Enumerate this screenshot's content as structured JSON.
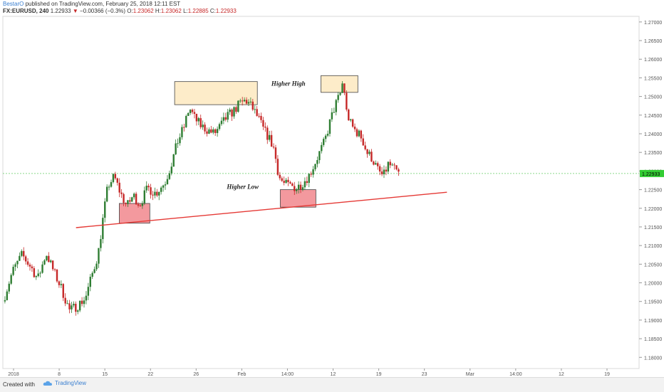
{
  "header": {
    "author": "BestarO",
    "published": "published on TradingView.com, February 25, 2018 12:11 EST",
    "symbol": "FX:EURUSD, 240",
    "last": "1.22933",
    "change": "−0.00366 (−0.3%)",
    "o_label": "O:",
    "o_value": "1.23062",
    "h_label": "H:",
    "h_value": "1.23062",
    "l_label": "L:",
    "l_value": "1.22885",
    "c_label": "C:",
    "c_value": "1.22933"
  },
  "footer": {
    "created_with": "Created with",
    "brand": "TradingView",
    "logo_icon": "tradingview-cloud-icon"
  },
  "chart_data": {
    "type": "candlestick",
    "symbol": "FX:EURUSD",
    "interval": "240",
    "ylim": [
      1.177,
      1.2715
    ],
    "y_ticks": [
      "1.27000",
      "1.26500",
      "1.26000",
      "1.25500",
      "1.25000",
      "1.24500",
      "1.24000",
      "1.23500",
      "1.23000",
      "1.22500",
      "1.22000",
      "1.21500",
      "1.21000",
      "1.20500",
      "1.20000",
      "1.19500",
      "1.19000",
      "1.18500",
      "1.18000"
    ],
    "x_ticks": [
      "2018",
      "8",
      "15",
      "22",
      "26",
      "Feb",
      "14:00",
      "12",
      "19",
      "23",
      "Mar",
      "14:00",
      "12",
      "19"
    ],
    "current_price": "1.22933",
    "up_color": "#2e7d32",
    "down_color": "#c62828",
    "annotations": [
      {
        "text": "Higher High"
      },
      {
        "text": "Higher Low"
      }
    ],
    "trendline": {
      "from": [
        0.115,
        1.2148
      ],
      "to": [
        0.698,
        1.2243
      ]
    },
    "zones": [
      {
        "kind": "supply",
        "x0": 0.27,
        "x1": 0.4,
        "y0": 1.2478,
        "y1": 1.254
      },
      {
        "kind": "supply",
        "x0": 0.5,
        "x1": 0.558,
        "y0": 1.2511,
        "y1": 1.2556
      },
      {
        "kind": "demand",
        "x0": 0.183,
        "x1": 0.231,
        "y0": 1.216,
        "y1": 1.2213
      },
      {
        "kind": "demand",
        "x0": 0.436,
        "x1": 0.492,
        "y0": 1.2203,
        "y1": 1.225
      }
    ],
    "path": [
      [
        0.0,
        1.195
      ],
      [
        0.015,
        1.203
      ],
      [
        0.03,
        1.2075
      ],
      [
        0.045,
        1.204
      ],
      [
        0.055,
        1.201
      ],
      [
        0.068,
        1.208
      ],
      [
        0.08,
        1.203
      ],
      [
        0.092,
        1.1985
      ],
      [
        0.105,
        1.1925
      ],
      [
        0.118,
        1.194
      ],
      [
        0.13,
        1.196
      ],
      [
        0.14,
        1.202
      ],
      [
        0.15,
        1.208
      ],
      [
        0.158,
        1.218
      ],
      [
        0.165,
        1.226
      ],
      [
        0.175,
        1.2285
      ],
      [
        0.185,
        1.224
      ],
      [
        0.195,
        1.2205
      ],
      [
        0.205,
        1.2235
      ],
      [
        0.215,
        1.221
      ],
      [
        0.228,
        1.2255
      ],
      [
        0.24,
        1.224
      ],
      [
        0.255,
        1.227
      ],
      [
        0.265,
        1.232
      ],
      [
        0.275,
        1.238
      ],
      [
        0.285,
        1.242
      ],
      [
        0.293,
        1.247
      ],
      [
        0.302,
        1.244
      ],
      [
        0.312,
        1.242
      ],
      [
        0.322,
        1.241
      ],
      [
        0.332,
        1.24
      ],
      [
        0.342,
        1.242
      ],
      [
        0.352,
        1.2445
      ],
      [
        0.362,
        1.246
      ],
      [
        0.372,
        1.248
      ],
      [
        0.382,
        1.249
      ],
      [
        0.392,
        1.247
      ],
      [
        0.402,
        1.244
      ],
      [
        0.41,
        1.241
      ],
      [
        0.418,
        1.239
      ],
      [
        0.426,
        1.236
      ],
      [
        0.434,
        1.2285
      ],
      [
        0.442,
        1.2265
      ],
      [
        0.452,
        1.226
      ],
      [
        0.462,
        1.2255
      ],
      [
        0.472,
        1.227
      ],
      [
        0.482,
        1.229
      ],
      [
        0.49,
        1.232
      ],
      [
        0.498,
        1.235
      ],
      [
        0.506,
        1.238
      ],
      [
        0.514,
        1.243
      ],
      [
        0.522,
        1.2475
      ],
      [
        0.53,
        1.2505
      ],
      [
        0.535,
        1.2545
      ],
      [
        0.54,
        1.246
      ],
      [
        0.548,
        1.242
      ],
      [
        0.556,
        1.2405
      ],
      [
        0.564,
        1.239
      ],
      [
        0.572,
        1.235
      ],
      [
        0.58,
        1.2335
      ],
      [
        0.59,
        1.23
      ],
      [
        0.598,
        1.2285
      ],
      [
        0.606,
        1.232
      ],
      [
        0.614,
        1.2305
      ],
      [
        0.622,
        1.2293
      ]
    ]
  }
}
